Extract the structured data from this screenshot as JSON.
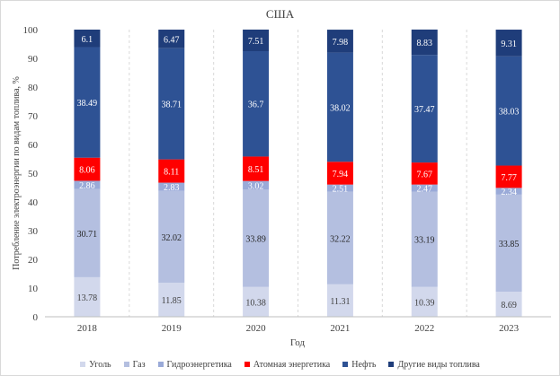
{
  "chart_data": {
    "type": "bar",
    "stacked": true,
    "title": "США",
    "xlabel": "Год",
    "ylabel": "Потребление электроэнергии по видам топлива, %",
    "ylim": [
      0,
      100
    ],
    "yticks": [
      0,
      10,
      20,
      30,
      40,
      50,
      60,
      70,
      80,
      90,
      100
    ],
    "grid": "vertical dashed",
    "legend_position": "bottom",
    "categories": [
      "2018",
      "2019",
      "2020",
      "2021",
      "2022",
      "2023"
    ],
    "series": [
      {
        "name": "Уголь",
        "color": "#d2d8ec",
        "label_color": "#404040",
        "values": [
          13.78,
          11.85,
          10.38,
          11.31,
          10.39,
          8.69
        ]
      },
      {
        "name": "Газ",
        "color": "#b4bfe0",
        "label_color": "#262626",
        "values": [
          30.71,
          32.02,
          33.89,
          32.22,
          33.19,
          33.85
        ]
      },
      {
        "name": "Гидроэнергетика",
        "color": "#9aaad8",
        "label_color": "#ffffff",
        "values": [
          2.86,
          2.83,
          3.02,
          2.51,
          2.47,
          2.34
        ]
      },
      {
        "name": "Атомная энергетика",
        "color": "#ff0000",
        "label_color": "#ffffff",
        "values": [
          8.06,
          8.11,
          8.51,
          7.94,
          7.67,
          7.77
        ]
      },
      {
        "name": "Нефть",
        "color": "#2e5294",
        "label_color": "#ffffff",
        "values": [
          38.49,
          38.71,
          36.7,
          38.02,
          37.47,
          38.03
        ]
      },
      {
        "name": "Другие виды топлива",
        "color": "#1f3d7a",
        "label_color": "#ffffff",
        "values": [
          6.1,
          6.47,
          7.51,
          7.98,
          8.83,
          9.31
        ]
      }
    ]
  }
}
